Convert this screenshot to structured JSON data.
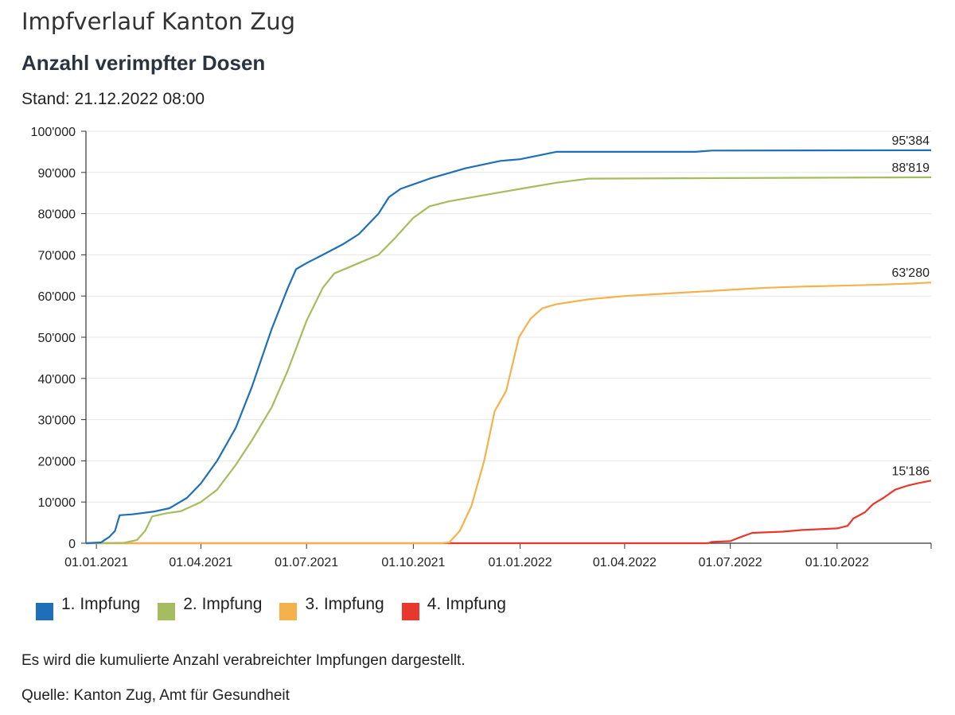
{
  "header": {
    "title": "Impfverlauf Kanton Zug",
    "subtitle": "Anzahl verimpfter Dosen",
    "stand": "Stand: 21.12.2022 08:00"
  },
  "footer": {
    "note": "Es wird die kumulierte Anzahl verabreichter Impfungen dargestellt.",
    "source": "Quelle: Kanton Zug, Amt für Gesundheit"
  },
  "chart_data": {
    "type": "line",
    "title": "Anzahl verimpfter Dosen",
    "xlabel": "",
    "ylabel": "",
    "xlim": [
      "2020-12-23",
      "2022-12-21"
    ],
    "ylim": [
      0,
      100000
    ],
    "grid": true,
    "legend_position": "bottom-left",
    "x_ticks": [
      "2021-01-01",
      "2021-04-01",
      "2021-07-01",
      "2021-10-01",
      "2022-01-01",
      "2022-04-01",
      "2022-07-01",
      "2022-10-01"
    ],
    "x_tick_labels": [
      "01.01.2021",
      "01.04.2021",
      "01.07.2021",
      "01.10.2021",
      "01.01.2022",
      "01.04.2022",
      "01.07.2022",
      "01.10.2022"
    ],
    "y_ticks": [
      0,
      10000,
      20000,
      30000,
      40000,
      50000,
      60000,
      70000,
      80000,
      90000,
      100000
    ],
    "y_tick_labels": [
      "0",
      "10'000",
      "20'000",
      "30'000",
      "40'000",
      "50'000",
      "60'000",
      "70'000",
      "80'000",
      "90'000",
      "100'000"
    ],
    "series": [
      {
        "name": "1. Impfung",
        "color": "#1f6fb8",
        "end_label": "95'384",
        "points": [
          [
            "2020-12-23",
            0
          ],
          [
            "2021-01-05",
            200
          ],
          [
            "2021-01-12",
            1500
          ],
          [
            "2021-01-17",
            3000
          ],
          [
            "2021-01-21",
            6800
          ],
          [
            "2021-02-01",
            7000
          ],
          [
            "2021-02-20",
            7700
          ],
          [
            "2021-03-05",
            8500
          ],
          [
            "2021-03-20",
            11000
          ],
          [
            "2021-04-01",
            14500
          ],
          [
            "2021-04-15",
            20000
          ],
          [
            "2021-05-01",
            28000
          ],
          [
            "2021-05-15",
            38000
          ],
          [
            "2021-06-01",
            52000
          ],
          [
            "2021-06-15",
            62000
          ],
          [
            "2021-06-22",
            66500
          ],
          [
            "2021-07-01",
            68000
          ],
          [
            "2021-07-15",
            70000
          ],
          [
            "2021-08-01",
            72500
          ],
          [
            "2021-08-15",
            75000
          ],
          [
            "2021-09-01",
            80000
          ],
          [
            "2021-09-10",
            84000
          ],
          [
            "2021-09-20",
            86000
          ],
          [
            "2021-10-15",
            88500
          ],
          [
            "2021-11-15",
            91000
          ],
          [
            "2021-12-15",
            92800
          ],
          [
            "2022-01-01",
            93200
          ],
          [
            "2022-02-01",
            95000
          ],
          [
            "2022-06-01",
            95000
          ],
          [
            "2022-06-15",
            95300
          ],
          [
            "2022-12-21",
            95384
          ]
        ]
      },
      {
        "name": "2. Impfung",
        "color": "#a5bd5e",
        "end_label": "88'819",
        "points": [
          [
            "2020-12-23",
            0
          ],
          [
            "2021-01-25",
            100
          ],
          [
            "2021-02-05",
            800
          ],
          [
            "2021-02-12",
            3000
          ],
          [
            "2021-02-18",
            6500
          ],
          [
            "2021-03-01",
            7200
          ],
          [
            "2021-03-15",
            7800
          ],
          [
            "2021-04-01",
            10000
          ],
          [
            "2021-04-15",
            13000
          ],
          [
            "2021-05-01",
            19000
          ],
          [
            "2021-05-15",
            25000
          ],
          [
            "2021-06-01",
            33000
          ],
          [
            "2021-06-15",
            42000
          ],
          [
            "2021-07-01",
            54000
          ],
          [
            "2021-07-15",
            62000
          ],
          [
            "2021-07-25",
            65500
          ],
          [
            "2021-08-15",
            68000
          ],
          [
            "2021-09-01",
            70000
          ],
          [
            "2021-09-15",
            74000
          ],
          [
            "2021-10-01",
            79000
          ],
          [
            "2021-10-15",
            81800
          ],
          [
            "2021-11-01",
            83000
          ],
          [
            "2021-12-01",
            84500
          ],
          [
            "2022-01-01",
            86000
          ],
          [
            "2022-02-01",
            87500
          ],
          [
            "2022-03-01",
            88500
          ],
          [
            "2022-12-21",
            88819
          ]
        ]
      },
      {
        "name": "3. Impfung",
        "color": "#f5b14c",
        "end_label": "63'280",
        "points": [
          [
            "2020-12-23",
            0
          ],
          [
            "2021-10-25",
            0
          ],
          [
            "2021-11-01",
            200
          ],
          [
            "2021-11-10",
            3000
          ],
          [
            "2021-11-20",
            9000
          ],
          [
            "2021-12-01",
            20000
          ],
          [
            "2021-12-10",
            32000
          ],
          [
            "2021-12-20",
            37000
          ],
          [
            "2021-12-31",
            50000
          ],
          [
            "2022-01-10",
            54500
          ],
          [
            "2022-01-20",
            57000
          ],
          [
            "2022-02-01",
            58000
          ],
          [
            "2022-03-01",
            59200
          ],
          [
            "2022-04-01",
            60000
          ],
          [
            "2022-05-01",
            60500
          ],
          [
            "2022-06-01",
            61000
          ],
          [
            "2022-07-01",
            61500
          ],
          [
            "2022-08-01",
            62000
          ],
          [
            "2022-09-01",
            62300
          ],
          [
            "2022-10-01",
            62500
          ],
          [
            "2022-11-01",
            62700
          ],
          [
            "2022-12-01",
            63000
          ],
          [
            "2022-12-21",
            63280
          ]
        ]
      },
      {
        "name": "4. Impfung",
        "color": "#e8382e",
        "end_label": "15'186",
        "points": [
          [
            "2020-12-23",
            0
          ],
          [
            "2022-06-12",
            0
          ],
          [
            "2022-06-15",
            300
          ],
          [
            "2022-07-01",
            500
          ],
          [
            "2022-07-10",
            1500
          ],
          [
            "2022-07-20",
            2500
          ],
          [
            "2022-08-15",
            2800
          ],
          [
            "2022-09-01",
            3200
          ],
          [
            "2022-10-01",
            3600
          ],
          [
            "2022-10-10",
            4200
          ],
          [
            "2022-10-15",
            6000
          ],
          [
            "2022-10-25",
            7500
          ],
          [
            "2022-11-01",
            9500
          ],
          [
            "2022-11-10",
            11000
          ],
          [
            "2022-11-20",
            13000
          ],
          [
            "2022-12-01",
            14000
          ],
          [
            "2022-12-10",
            14600
          ],
          [
            "2022-12-21",
            15186
          ]
        ]
      }
    ]
  }
}
